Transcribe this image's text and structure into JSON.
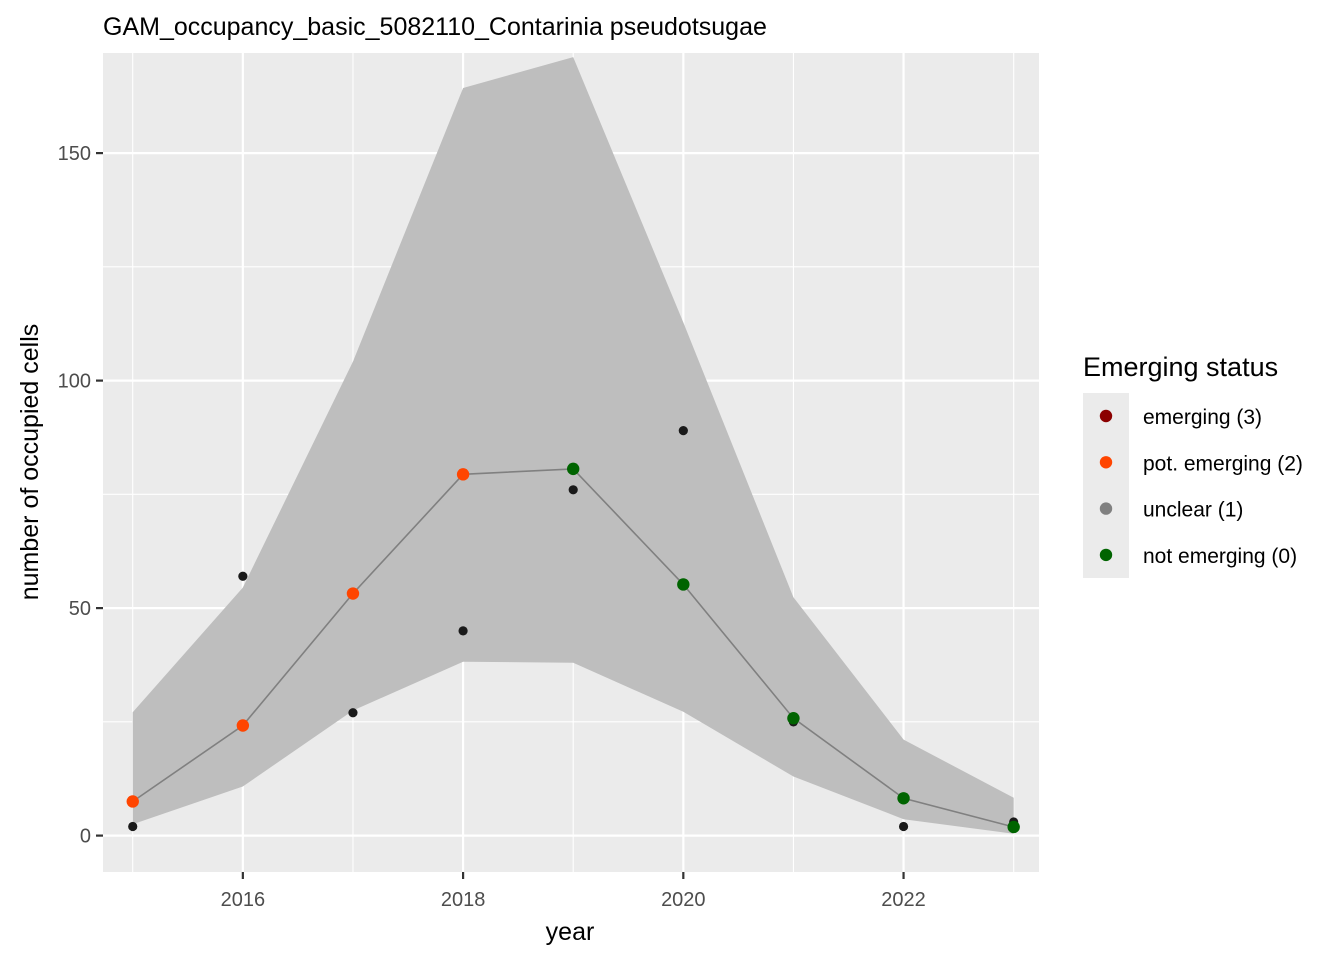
{
  "chart_data": {
    "type": "line",
    "title": "GAM_occupancy_basic_5082110_Contarinia pseudotsugae",
    "xlabel": "year",
    "ylabel": "number of occupied cells",
    "xlim": [
      2014.73,
      2023.23
    ],
    "ylim": [
      -8,
      172
    ],
    "x_ticks": [
      2016,
      2018,
      2020,
      2022
    ],
    "x_tick_labels": [
      "2016",
      "2018",
      "2020",
      "2022"
    ],
    "y_ticks": [
      0,
      50,
      100,
      150
    ],
    "y_tick_labels": [
      "0",
      "50",
      "100",
      "150"
    ],
    "grid": true,
    "background": "#ebebeb",
    "legend": {
      "title": "Emerging status",
      "placement": "right",
      "entries": [
        {
          "label": "emerging (3)",
          "color": "#8b0000"
        },
        {
          "label": "pot. emerging (2)",
          "color": "#ff4500"
        },
        {
          "label": "unclear (1)",
          "color": "#808080"
        },
        {
          "label": "not emerging (0)",
          "color": "#006400"
        }
      ]
    },
    "observed": {
      "x": [
        2015,
        2016,
        2017,
        2018,
        2019,
        2020,
        2021,
        2022,
        2023
      ],
      "y": [
        2,
        57,
        27,
        45,
        76,
        89,
        25,
        2,
        3
      ],
      "color": "#1a1a1a"
    },
    "fitted": {
      "x": [
        2015,
        2016,
        2017,
        2018,
        2019,
        2020,
        2021,
        2022,
        2023
      ],
      "y": [
        7.5,
        24.2,
        53.2,
        79.4,
        80.6,
        55.2,
        25.8,
        8.2,
        1.9
      ],
      "status_color": [
        "#ff4500",
        "#ff4500",
        "#ff4500",
        "#ff4500",
        "#006400",
        "#006400",
        "#006400",
        "#006400",
        "#006400"
      ],
      "line_color": "#808080"
    },
    "ribbon": {
      "x": [
        2015,
        2016,
        2017,
        2018,
        2019,
        2020,
        2021,
        2022,
        2023
      ],
      "lower": [
        2.5,
        10.8,
        27.5,
        38.2,
        38.0,
        27.2,
        13.0,
        3.6,
        0.4
      ],
      "upper": [
        27.1,
        54.5,
        104.2,
        164.3,
        171.1,
        112.8,
        52.4,
        21.1,
        8.3
      ],
      "color": "#bebebe"
    }
  }
}
